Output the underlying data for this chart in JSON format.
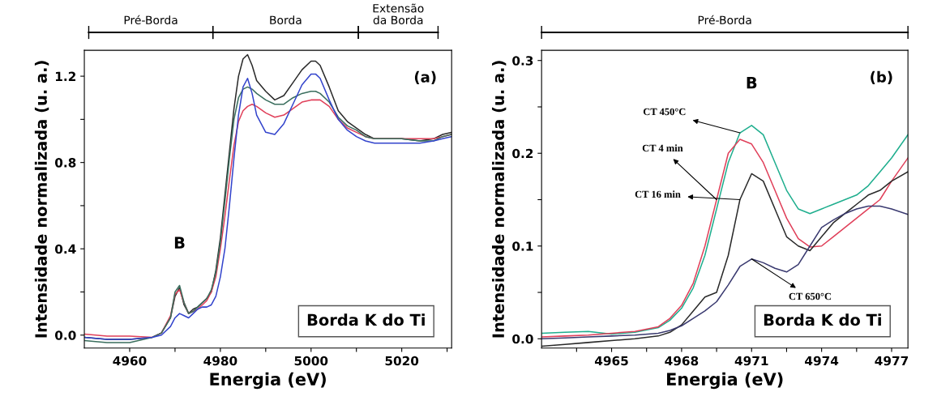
{
  "chart_data": [
    {
      "type": "line",
      "xlabel": "Energia (eV)",
      "ylabel": "Intensidade normalizada (u. a.)",
      "x": [
        4950,
        4955,
        4960,
        4965,
        4967,
        4969,
        4970,
        4971,
        4972,
        4973,
        4974,
        4975,
        4976,
        4977,
        4978,
        4979,
        4980,
        4981,
        4982,
        4983,
        4984,
        4985,
        4986,
        4987,
        4988,
        4990,
        4992,
        4994,
        4996,
        4998,
        5000,
        5001,
        5002,
        5004,
        5006,
        5008,
        5010,
        5012,
        5014,
        5016,
        5020,
        5024,
        5027,
        5029,
        5031
      ],
      "xlim": [
        4950,
        5031
      ],
      "xticks": [
        4960,
        {
          "value": 4970,
          "label": null
        },
        4980,
        {
          "value": 4990,
          "label": null
        },
        5000,
        {
          "value": 5010,
          "label": null
        },
        5020,
        {
          "value": 5030,
          "label": null
        }
      ],
      "ylim": [
        -0.06,
        1.32
      ],
      "yticks": [
        {
          "value": 0.0,
          "label": "0.0"
        },
        {
          "value": 0.2,
          "label": null
        },
        0.4,
        {
          "value": 0.6,
          "label": null
        },
        0.8,
        {
          "value": 1.0,
          "label": null
        },
        1.2
      ],
      "series": [
        {
          "color": "#2a2a2a",
          "values": [
            -0.01,
            -0.02,
            -0.02,
            -0.01,
            0.01,
            0.08,
            0.18,
            0.22,
            0.14,
            0.1,
            0.12,
            0.13,
            0.15,
            0.17,
            0.2,
            0.3,
            0.45,
            0.65,
            0.85,
            1.05,
            1.2,
            1.28,
            1.3,
            1.25,
            1.18,
            1.13,
            1.09,
            1.11,
            1.17,
            1.23,
            1.27,
            1.27,
            1.25,
            1.15,
            1.04,
            0.99,
            0.96,
            0.93,
            0.91,
            0.91,
            0.91,
            0.9,
            0.91,
            0.93,
            0.94
          ]
        },
        {
          "color": "#e0405a",
          "values": [
            0.005,
            -0.005,
            -0.005,
            -0.01,
            0.01,
            0.09,
            0.19,
            0.21,
            0.15,
            0.1,
            0.11,
            0.12,
            0.14,
            0.16,
            0.2,
            0.27,
            0.4,
            0.55,
            0.72,
            0.88,
            0.99,
            1.04,
            1.06,
            1.07,
            1.06,
            1.03,
            1.01,
            1.02,
            1.05,
            1.08,
            1.09,
            1.09,
            1.09,
            1.06,
            1.0,
            0.96,
            0.94,
            0.92,
            0.91,
            0.91,
            0.91,
            0.91,
            0.91,
            0.92,
            0.93
          ]
        },
        {
          "color": "#3a6e5e",
          "values": [
            -0.025,
            -0.035,
            -0.035,
            -0.01,
            0.01,
            0.08,
            0.2,
            0.23,
            0.15,
            0.1,
            0.11,
            0.13,
            0.15,
            0.17,
            0.21,
            0.29,
            0.43,
            0.62,
            0.82,
            1.0,
            1.1,
            1.14,
            1.15,
            1.14,
            1.12,
            1.09,
            1.07,
            1.07,
            1.1,
            1.12,
            1.13,
            1.13,
            1.12,
            1.08,
            1.01,
            0.97,
            0.95,
            0.92,
            0.91,
            0.91,
            0.91,
            0.9,
            0.9,
            0.92,
            0.93
          ]
        },
        {
          "color": "#3344cc",
          "values": [
            -0.01,
            -0.02,
            -0.02,
            -0.01,
            0.0,
            0.04,
            0.08,
            0.1,
            0.09,
            0.08,
            0.1,
            0.12,
            0.13,
            0.13,
            0.14,
            0.18,
            0.27,
            0.4,
            0.6,
            0.82,
            1.02,
            1.15,
            1.19,
            1.12,
            1.02,
            0.94,
            0.93,
            0.98,
            1.07,
            1.16,
            1.21,
            1.21,
            1.19,
            1.09,
            1.0,
            0.95,
            0.92,
            0.9,
            0.89,
            0.89,
            0.89,
            0.89,
            0.9,
            0.91,
            0.92
          ]
        }
      ],
      "annotations": [
        {
          "text": "B",
          "x": 4971,
          "y": 0.23
        },
        "(a)",
        "Borda K do Ti",
        "Pré-Borda",
        "Borda",
        "Extensão\nda Borda"
      ],
      "grid": false,
      "legend": false
    },
    {
      "type": "line",
      "xlabel": "Energia (eV)",
      "ylabel": "Intensidade normalizada (u. a.)",
      "x": [
        4962,
        4963,
        4964,
        4965,
        4966,
        4967,
        4967.5,
        4968,
        4968.5,
        4969,
        4969.5,
        4970,
        4970.5,
        4971,
        4971.5,
        4972,
        4972.5,
        4973,
        4973.5,
        4974,
        4974.5,
        4975,
        4975.5,
        4976,
        4976.5,
        4977,
        4977.7
      ],
      "xlim": [
        4962,
        4977.7
      ],
      "xticks": [
        {
          "value": 4963.5,
          "label": null
        },
        4965,
        {
          "value": 4966.5,
          "label": null
        },
        4968,
        {
          "value": 4969.5,
          "label": null
        },
        4971,
        {
          "value": 4972.5,
          "label": null
        },
        4974,
        {
          "value": 4975.5,
          "label": null
        },
        4977
      ],
      "ylim": [
        -0.01,
        0.311
      ],
      "yticks": [
        {
          "value": 0.0,
          "label": "0.0"
        },
        {
          "value": 0.05,
          "label": null
        },
        0.1,
        {
          "value": 0.15,
          "label": null
        },
        0.2,
        {
          "value": 0.25,
          "label": null
        },
        0.3
      ],
      "series": [
        {
          "color": "#1fae8e",
          "values": [
            0.006,
            0.007,
            0.008,
            0.005,
            0.007,
            0.012,
            0.02,
            0.033,
            0.055,
            0.09,
            0.14,
            0.19,
            0.222,
            0.23,
            0.22,
            0.19,
            0.16,
            0.14,
            0.135,
            0.14,
            0.145,
            0.15,
            0.155,
            0.165,
            0.18,
            0.195,
            0.22
          ]
        },
        {
          "color": "#e0405a",
          "values": [
            0.002,
            0.003,
            0.004,
            0.006,
            0.008,
            0.013,
            0.022,
            0.036,
            0.06,
            0.1,
            0.15,
            0.2,
            0.215,
            0.21,
            0.19,
            0.16,
            0.13,
            0.108,
            0.099,
            0.1,
            0.11,
            0.12,
            0.13,
            0.14,
            0.15,
            0.17,
            0.195
          ]
        },
        {
          "color": "#2a2a2a",
          "values": [
            -0.008,
            -0.006,
            -0.004,
            -0.002,
            0.0,
            0.003,
            0.007,
            0.015,
            0.03,
            0.045,
            0.05,
            0.09,
            0.15,
            0.178,
            0.17,
            0.14,
            0.11,
            0.1,
            0.095,
            0.11,
            0.125,
            0.135,
            0.145,
            0.155,
            0.16,
            0.17,
            0.18
          ]
        },
        {
          "color": "#3a3a70",
          "values": [
            0.0,
            0.001,
            0.002,
            0.003,
            0.004,
            0.006,
            0.009,
            0.014,
            0.022,
            0.03,
            0.04,
            0.058,
            0.078,
            0.086,
            0.082,
            0.076,
            0.072,
            0.08,
            0.1,
            0.12,
            0.128,
            0.135,
            0.14,
            0.143,
            0.143,
            0.14,
            0.134
          ]
        }
      ],
      "annotations": [
        {
          "text": "B",
          "x": 4971,
          "y": 0.23
        },
        "(b)",
        "Borda K do Ti",
        "Pré-Borda",
        {
          "text": "CT 450°C",
          "x": 4970.5,
          "y": 0.222
        },
        {
          "text": "CT 4 min",
          "x": 4969.5,
          "y": 0.15
        },
        {
          "text": "CT 16 min",
          "x": 4970.5,
          "y": 0.15
        },
        {
          "text": "CT 650°C",
          "x": 4971,
          "y": 0.086
        }
      ],
      "grid": false,
      "legend": false
    }
  ]
}
